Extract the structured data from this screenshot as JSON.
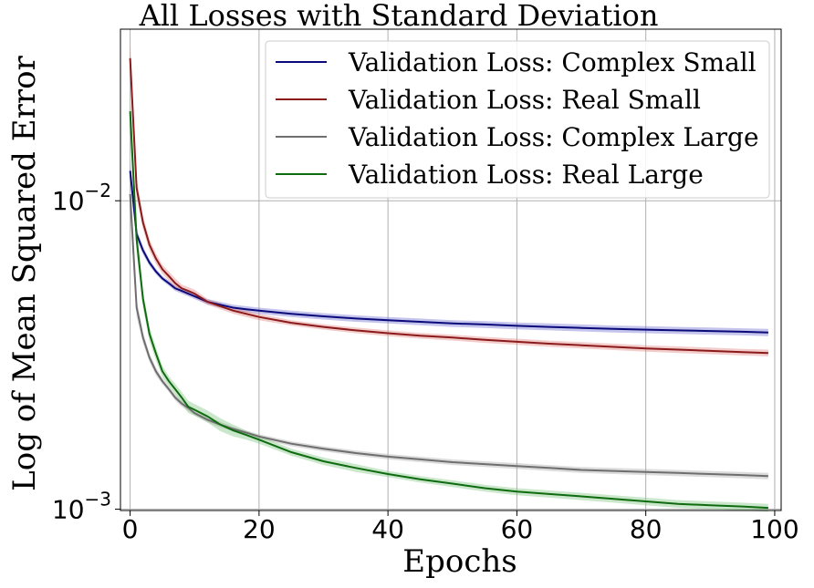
{
  "chart_data": {
    "type": "line",
    "title": "All Losses with Standard Deviation",
    "xlabel": "Epochs",
    "ylabel": "Log of Mean Squared Error",
    "xlim": [
      -1.5,
      101
    ],
    "ylim": [
      0.00099,
      0.036
    ],
    "yscale": "log",
    "grid": true,
    "legend_position": "top-right",
    "xticks": [
      0,
      20,
      40,
      60,
      80,
      100
    ],
    "xtick_labels": [
      "0",
      "20",
      "40",
      "60",
      "80",
      "100"
    ],
    "yticks": [
      0.01,
      0.001
    ],
    "ytick_labels": [
      {
        "base": "10",
        "exp": "−2"
      },
      {
        "base": "10",
        "exp": "−3"
      }
    ],
    "x": [
      0,
      1,
      2,
      3,
      4,
      5,
      6,
      7,
      8,
      9,
      10,
      12,
      14,
      16,
      18,
      20,
      25,
      30,
      35,
      40,
      45,
      50,
      55,
      60,
      65,
      70,
      75,
      80,
      85,
      90,
      95,
      99
    ],
    "series": [
      {
        "name": "Validation Loss: Complex Small",
        "color": "#0a0a7a",
        "fill": "#6b6bd0",
        "values": [
          0.0125,
          0.0078,
          0.0069,
          0.0063,
          0.0059,
          0.0056,
          0.0054,
          0.0052,
          0.0051,
          0.005,
          0.0049,
          0.0047,
          0.0046,
          0.0045,
          0.00445,
          0.0044,
          0.0043,
          0.00422,
          0.00415,
          0.0041,
          0.00405,
          0.004,
          0.00397,
          0.00393,
          0.0039,
          0.00387,
          0.00384,
          0.00382,
          0.0038,
          0.00378,
          0.00376,
          0.00374
        ],
        "std": [
          0.0008,
          0.0003,
          0.0002,
          0.00015,
          0.00012,
          0.0001,
          0.0001,
          0.0001,
          0.0001,
          0.0001,
          0.0001,
          0.0001,
          0.0001,
          0.0001,
          0.0001,
          0.0001,
          0.0001,
          0.0001,
          0.0001,
          0.0001,
          0.0001,
          0.0001,
          0.0001,
          0.0001,
          0.0001,
          0.0001,
          0.0001,
          0.0001,
          0.0001,
          0.0001,
          0.0001,
          0.0001
        ]
      },
      {
        "name": "Validation Loss: Real Small",
        "color": "#8b1a1a",
        "fill": "#e08080",
        "values": [
          0.029,
          0.011,
          0.0085,
          0.0072,
          0.0065,
          0.006,
          0.0057,
          0.0054,
          0.0052,
          0.0051,
          0.005,
          0.0047,
          0.00455,
          0.0044,
          0.0043,
          0.0042,
          0.00402,
          0.0039,
          0.0038,
          0.00372,
          0.00365,
          0.0036,
          0.00354,
          0.00349,
          0.00344,
          0.0034,
          0.00336,
          0.00332,
          0.00329,
          0.00326,
          0.00323,
          0.00321
        ],
        "std": [
          0.004,
          0.0008,
          0.0004,
          0.0003,
          0.00025,
          0.0002,
          0.0002,
          0.0002,
          0.00015,
          0.00015,
          0.00015,
          0.0001,
          0.0001,
          0.0001,
          0.0001,
          0.0001,
          8e-05,
          8e-05,
          8e-05,
          8e-05,
          8e-05,
          8e-05,
          8e-05,
          8e-05,
          8e-05,
          8e-05,
          8e-05,
          8e-05,
          8e-05,
          8e-05,
          8e-05,
          8e-05
        ]
      },
      {
        "name": "Validation Loss: Complex Large",
        "color": "#6e6e6e",
        "fill": "#a8a8a8",
        "values": [
          0.0105,
          0.0045,
          0.0036,
          0.0031,
          0.0028,
          0.0026,
          0.00245,
          0.0023,
          0.0022,
          0.00213,
          0.00205,
          0.00195,
          0.00188,
          0.00182,
          0.00177,
          0.00172,
          0.00163,
          0.00157,
          0.00152,
          0.00148,
          0.00145,
          0.00142,
          0.0014,
          0.00138,
          0.00136,
          0.00134,
          0.00133,
          0.00132,
          0.00131,
          0.0013,
          0.00129,
          0.00128
        ],
        "std": [
          0.0015,
          0.0003,
          0.00015,
          0.0001,
          8e-05,
          6e-05,
          5e-05,
          5e-05,
          5e-05,
          5e-05,
          4e-05,
          4e-05,
          4e-05,
          3e-05,
          3e-05,
          3e-05,
          3e-05,
          3e-05,
          3e-05,
          3e-05,
          3e-05,
          3e-05,
          3e-05,
          3e-05,
          3e-05,
          3e-05,
          3e-05,
          3e-05,
          3e-05,
          3e-05,
          3e-05,
          3e-05
        ]
      },
      {
        "name": "Validation Loss: Real Large",
        "color": "#0f6b0f",
        "fill": "#7dc47d",
        "values": [
          0.0195,
          0.0075,
          0.0048,
          0.0037,
          0.0032,
          0.0028,
          0.0026,
          0.00245,
          0.0023,
          0.00215,
          0.0021,
          0.002,
          0.00188,
          0.0018,
          0.00174,
          0.00168,
          0.00153,
          0.00143,
          0.00136,
          0.0013,
          0.00125,
          0.00121,
          0.00117,
          0.00114,
          0.00112,
          0.0011,
          0.00108,
          0.00106,
          0.00104,
          0.00103,
          0.00102,
          0.00101
        ],
        "std": [
          0.003,
          0.0008,
          0.0003,
          0.0002,
          0.00015,
          0.00012,
          0.0001,
          0.0001,
          0.0001,
          0.0001,
          9e-05,
          9e-05,
          9e-05,
          8e-05,
          6e-05,
          5e-05,
          4e-05,
          4e-05,
          4e-05,
          3e-05,
          3e-05,
          3e-05,
          3e-05,
          3e-05,
          3e-05,
          3e-05,
          3e-05,
          3e-05,
          3e-05,
          3e-05,
          3e-05,
          3e-05
        ]
      }
    ]
  }
}
